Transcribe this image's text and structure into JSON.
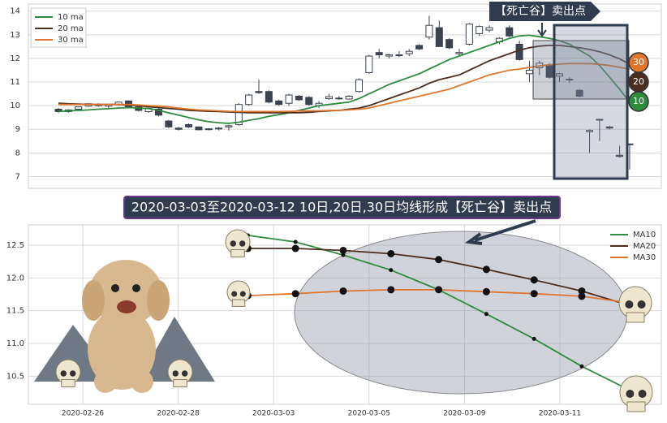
{
  "chart_data": [
    {
      "type": "candlestick",
      "annotation": "【死亡谷】卖出点",
      "ylim": [
        6.5,
        14.3
      ],
      "yticks": [
        7,
        8,
        9,
        10,
        11,
        12,
        13,
        14
      ],
      "grid": true,
      "legend": "upper left",
      "up_color": "#ffffff",
      "down_color": "#3a4250",
      "open": [
        9.85,
        9.75,
        9.85,
        9.98,
        10.05,
        9.98,
        10.05,
        10.2,
        9.95,
        9.75,
        9.85,
        9.35,
        9.05,
        9.2,
        9.1,
        9.0,
        9.02,
        9.1,
        9.2,
        10.05,
        10.6,
        10.6,
        10.2,
        10.1,
        10.4,
        10.35,
        10.0,
        10.3,
        10.32,
        10.28,
        10.6,
        11.4,
        12.25,
        12.1,
        12.15,
        12.2,
        12.55,
        12.9,
        13.3,
        12.8,
        12.2,
        12.6,
        13.05,
        13.2,
        12.7,
        13.3,
        12.6,
        11.35,
        11.6,
        11.7,
        11.25,
        11.1,
        10.65,
        8.9,
        9.4,
        9.1,
        7.9,
        8.35
      ],
      "high": [
        9.9,
        9.85,
        9.95,
        10.1,
        10.1,
        10.05,
        10.15,
        10.22,
        10.0,
        9.9,
        9.9,
        9.4,
        9.1,
        9.25,
        9.12,
        9.05,
        9.1,
        9.2,
        10.1,
        10.5,
        11.1,
        10.65,
        10.25,
        10.5,
        10.45,
        10.4,
        10.2,
        10.5,
        10.4,
        10.45,
        11.15,
        12.15,
        12.4,
        12.2,
        12.3,
        12.4,
        12.6,
        13.8,
        13.6,
        12.85,
        12.4,
        13.5,
        13.4,
        13.4,
        12.9,
        13.4,
        12.75,
        11.9,
        11.9,
        11.8,
        11.4,
        11.2,
        10.7,
        9.0,
        9.45,
        9.15,
        8.3,
        8.4
      ],
      "low": [
        9.7,
        9.7,
        9.8,
        9.95,
        9.95,
        9.9,
        10.0,
        9.9,
        9.75,
        9.7,
        9.55,
        9.05,
        8.95,
        9.05,
        8.95,
        8.95,
        8.95,
        8.95,
        9.15,
        10.0,
        10.5,
        10.1,
        10.0,
        10.0,
        10.2,
        10.0,
        9.9,
        10.25,
        10.25,
        10.25,
        10.55,
        11.35,
        12.0,
        12.0,
        12.05,
        12.1,
        12.35,
        12.8,
        12.5,
        12.4,
        12.1,
        12.55,
        12.95,
        13.1,
        12.6,
        12.9,
        11.9,
        11.0,
        11.3,
        11.15,
        11.0,
        10.95,
        10.35,
        8.0,
        8.5,
        9.0,
        7.8,
        7.3
      ],
      "close": [
        9.75,
        9.82,
        9.95,
        10.08,
        10.0,
        10.05,
        10.15,
        9.95,
        9.8,
        9.88,
        9.6,
        9.1,
        9.0,
        9.1,
        8.98,
        9.02,
        9.05,
        9.15,
        10.05,
        10.45,
        10.55,
        10.15,
        10.05,
        10.45,
        10.25,
        10.05,
        10.1,
        10.38,
        10.3,
        10.4,
        11.1,
        12.1,
        12.15,
        12.15,
        12.12,
        12.3,
        12.4,
        13.4,
        12.5,
        12.45,
        12.25,
        13.45,
        13.35,
        13.3,
        12.85,
        12.95,
        11.95,
        11.5,
        11.8,
        11.2,
        11.35,
        11.12,
        10.4,
        8.95,
        9.42,
        9.05,
        7.85,
        8.38
      ],
      "series": [
        {
          "name": "10 ma",
          "end_label": "10",
          "color": "#2e8b3e",
          "values": [
            9.75,
            9.78,
            9.8,
            9.82,
            9.85,
            9.87,
            9.9,
            9.92,
            9.9,
            9.88,
            9.8,
            9.7,
            9.6,
            9.5,
            9.4,
            9.32,
            9.28,
            9.25,
            9.3,
            9.38,
            9.45,
            9.55,
            9.62,
            9.7,
            9.8,
            9.9,
            10.0,
            10.05,
            10.1,
            10.15,
            10.3,
            10.5,
            10.7,
            10.9,
            11.05,
            11.2,
            11.35,
            11.55,
            11.75,
            11.95,
            12.1,
            12.25,
            12.4,
            12.55,
            12.7,
            12.85,
            12.95,
            12.98,
            12.92,
            12.85,
            12.75,
            12.6,
            12.35,
            12.1,
            11.7,
            11.2,
            10.7,
            10.15
          ]
        },
        {
          "name": "20 ma",
          "end_label": "20",
          "color": "#4b2e20",
          "values": [
            10.1,
            10.08,
            10.07,
            10.05,
            10.05,
            10.05,
            10.05,
            10.02,
            10.0,
            9.95,
            9.92,
            9.88,
            9.85,
            9.8,
            9.78,
            9.76,
            9.75,
            9.73,
            9.72,
            9.7,
            9.7,
            9.7,
            9.7,
            9.7,
            9.7,
            9.72,
            9.75,
            9.78,
            9.8,
            9.85,
            9.9,
            10.0,
            10.15,
            10.3,
            10.45,
            10.6,
            10.75,
            10.95,
            11.1,
            11.2,
            11.3,
            11.5,
            11.7,
            11.9,
            12.05,
            12.2,
            12.35,
            12.45,
            12.52,
            12.55,
            12.55,
            12.5,
            12.45,
            12.38,
            12.28,
            12.15,
            11.98,
            11.75
          ]
        },
        {
          "name": "30 ma",
          "end_label": "30",
          "color": "#e0762b",
          "values": [
            10.05,
            10.05,
            10.05,
            10.05,
            10.05,
            10.05,
            10.05,
            10.05,
            10.03,
            10.0,
            9.98,
            9.95,
            9.9,
            9.85,
            9.82,
            9.8,
            9.78,
            9.76,
            9.75,
            9.75,
            9.75,
            9.75,
            9.75,
            9.76,
            9.77,
            9.78,
            9.78,
            9.8,
            9.8,
            9.82,
            9.85,
            9.9,
            10.0,
            10.1,
            10.2,
            10.3,
            10.4,
            10.5,
            10.6,
            10.7,
            10.85,
            11.0,
            11.15,
            11.3,
            11.4,
            11.5,
            11.55,
            11.62,
            11.68,
            11.73,
            11.76,
            11.78,
            11.78,
            11.78,
            11.75,
            11.7,
            11.62,
            11.55
          ]
        }
      ]
    },
    {
      "type": "line",
      "title": "2020-03-03至2020-03-12 10日,20日,30日均线形成【死亡谷】卖出点",
      "categories": [
        "2020-02-26",
        null,
        "2020-02-28",
        null,
        "2020-03-03",
        null,
        "2020-03-05",
        null,
        "2020-03-09",
        null,
        "2020-03-11",
        null
      ],
      "ylim": [
        10.07,
        12.81
      ],
      "yticks": [
        10.5,
        {
          "value": 11,
          "label": "11.0"
        },
        11.5,
        {
          "value": 12,
          "label": "12.0"
        },
        12.5
      ],
      "grid": true,
      "legend": "upper right",
      "series": [
        {
          "name": "MA10",
          "color": "#2e8b3e",
          "values": [
            null,
            null,
            null,
            12.65,
            12.55,
            12.35,
            12.12,
            11.82,
            11.45,
            11.07,
            10.65,
            10.29
          ]
        },
        {
          "name": "MA20",
          "color": "#4b2e20",
          "values": [
            null,
            null,
            null,
            12.45,
            12.45,
            12.42,
            12.37,
            12.28,
            12.13,
            11.97,
            11.8,
            11.58
          ]
        },
        {
          "name": "MA30",
          "color": "#e0762b",
          "values": [
            null,
            null,
            null,
            11.73,
            11.76,
            11.8,
            11.82,
            11.82,
            11.79,
            11.76,
            11.72,
            11.62
          ]
        }
      ]
    }
  ]
}
